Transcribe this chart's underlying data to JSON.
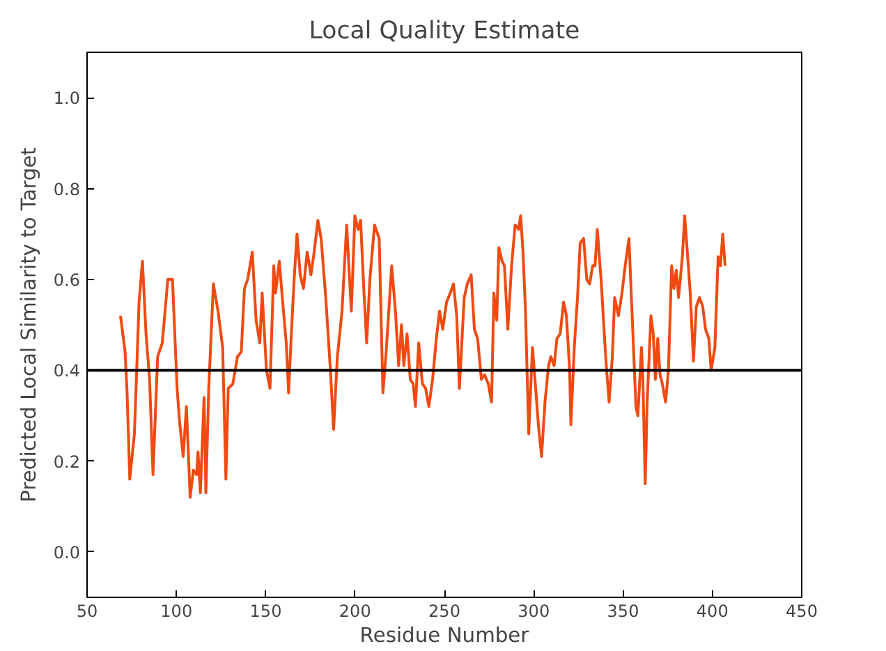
{
  "chart_data": {
    "type": "line",
    "title": "Local Quality Estimate",
    "xlabel": "Residue Number",
    "ylabel": "Predicted Local Similarity to Target",
    "xlim": [
      50,
      450
    ],
    "ylim": [
      -0.1,
      1.1
    ],
    "xticks": [
      50,
      100,
      150,
      200,
      250,
      300,
      350,
      400,
      450
    ],
    "yticks": [
      {
        "value": 0,
        "label": "0.0"
      },
      {
        "value": 0.2,
        "label": "0.2"
      },
      {
        "value": 0.4,
        "label": "0.4"
      },
      {
        "value": 0.6,
        "label": "0.6"
      },
      {
        "value": 0.8,
        "label": "0.8"
      },
      {
        "value": 1.0,
        "label": "1.0"
      }
    ],
    "grid": false,
    "marker": "none",
    "line_style": "solid",
    "ref_lines": [
      {
        "axis": "y",
        "value": 0.4,
        "color": "#000000"
      }
    ],
    "series": [
      {
        "color": "#f04a12",
        "x": [
          68.7,
          71.3,
          72.4,
          73.9,
          76.5,
          77.6,
          79.1,
          81,
          83,
          85,
          86.9,
          89.5,
          92.1,
          95.2,
          97.8,
          100.4,
          101.7,
          103.8,
          105.6,
          107.7,
          109.5,
          111.3,
          112.1,
          113.4,
          115.5,
          116.5,
          118.1,
          120.7,
          123.3,
          125.9,
          127.7,
          129,
          131.6,
          134.2,
          136.3,
          138.1,
          139.9,
          142.5,
          144.6,
          146.7,
          148,
          150.4,
          152.4,
          154.5,
          155.5,
          157.6,
          159.7,
          161.5,
          162.8,
          164.1,
          165.9,
          167.5,
          169.3,
          171.1,
          173.2,
          175.3,
          177.1,
          179.2,
          181,
          183.6,
          186.2,
          188,
          190.1,
          192.7,
          195.3,
          197.9,
          199.9,
          201.7,
          203.1,
          205,
          206.5,
          208.3,
          210.9,
          213.5,
          215.6,
          217.4,
          220.5,
          222.6,
          224.4,
          226,
          227.3,
          229.1,
          230.9,
          232.5,
          233.8,
          235.6,
          237.7,
          239.5,
          241.3,
          243.4,
          245.5,
          247.3,
          249.1,
          251.2,
          253.3,
          255.1,
          256.9,
          258.4,
          261.1,
          262.8,
          265,
          266.8,
          268.6,
          270.7,
          272.5,
          274.6,
          276.4,
          277.7,
          279.3,
          280.5,
          282.3,
          283.6,
          285.5,
          287.6,
          289.6,
          291.5,
          292.7,
          294,
          295.4,
          297.2,
          299.3,
          301.1,
          302.6,
          304.4,
          306.3,
          308.3,
          309.6,
          311.4,
          313,
          314.8,
          316.7,
          318.3,
          320.1,
          320.8,
          322.7,
          324.5,
          326,
          327.9,
          329.7,
          331.3,
          333,
          334.3,
          335.6,
          337.7,
          339.5,
          340.8,
          342.2,
          344,
          345.3,
          347.4,
          349.4,
          351.2,
          353.3,
          355.1,
          357.2,
          358.3,
          360.3,
          361.1,
          362.4,
          363.5,
          365.6,
          366.9,
          368.1,
          369.4,
          370.7,
          372,
          373.8,
          375.4,
          377.2,
          378.5,
          379.8,
          381.1,
          383.2,
          384.5,
          385.8,
          387.6,
          389.4,
          391,
          392.8,
          394.6,
          396.2,
          398,
          399.3,
          401.4,
          403.2,
          404.5,
          405.8,
          407.1
        ],
        "values": [
          0.52,
          0.44,
          0.35,
          0.16,
          0.26,
          0.38,
          0.55,
          0.64,
          0.48,
          0.38,
          0.17,
          0.43,
          0.46,
          0.6,
          0.6,
          0.36,
          0.29,
          0.21,
          0.32,
          0.12,
          0.18,
          0.17,
          0.22,
          0.13,
          0.34,
          0.13,
          0.36,
          0.59,
          0.53,
          0.45,
          0.16,
          0.36,
          0.37,
          0.43,
          0.44,
          0.58,
          0.6,
          0.66,
          0.51,
          0.46,
          0.57,
          0.4,
          0.36,
          0.63,
          0.57,
          0.64,
          0.54,
          0.46,
          0.35,
          0.46,
          0.6,
          0.7,
          0.61,
          0.58,
          0.66,
          0.61,
          0.66,
          0.73,
          0.69,
          0.56,
          0.4,
          0.27,
          0.43,
          0.53,
          0.72,
          0.53,
          0.74,
          0.71,
          0.73,
          0.57,
          0.46,
          0.6,
          0.72,
          0.69,
          0.35,
          0.44,
          0.63,
          0.53,
          0.41,
          0.5,
          0.41,
          0.48,
          0.38,
          0.37,
          0.32,
          0.46,
          0.37,
          0.36,
          0.32,
          0.38,
          0.47,
          0.53,
          0.49,
          0.55,
          0.57,
          0.59,
          0.52,
          0.36,
          0.56,
          0.59,
          0.61,
          0.49,
          0.47,
          0.38,
          0.39,
          0.37,
          0.33,
          0.57,
          0.51,
          0.67,
          0.64,
          0.63,
          0.49,
          0.63,
          0.72,
          0.71,
          0.74,
          0.66,
          0.53,
          0.26,
          0.45,
          0.36,
          0.28,
          0.21,
          0.33,
          0.41,
          0.43,
          0.41,
          0.47,
          0.48,
          0.55,
          0.52,
          0.4,
          0.28,
          0.45,
          0.56,
          0.68,
          0.69,
          0.6,
          0.59,
          0.63,
          0.63,
          0.71,
          0.6,
          0.48,
          0.4,
          0.33,
          0.43,
          0.56,
          0.52,
          0.57,
          0.63,
          0.69,
          0.52,
          0.32,
          0.3,
          0.45,
          0.38,
          0.15,
          0.33,
          0.52,
          0.48,
          0.38,
          0.47,
          0.39,
          0.37,
          0.33,
          0.4,
          0.63,
          0.58,
          0.62,
          0.56,
          0.65,
          0.74,
          0.67,
          0.57,
          0.42,
          0.54,
          0.56,
          0.54,
          0.49,
          0.47,
          0.4,
          0.45,
          0.65,
          0.63,
          0.7,
          0.63
        ]
      }
    ]
  }
}
